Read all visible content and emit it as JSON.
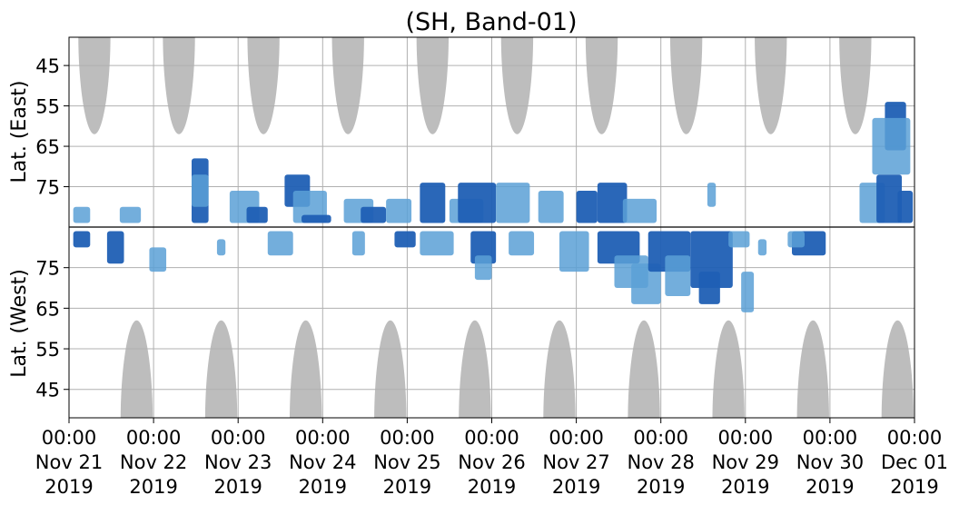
{
  "chart_data": {
    "type": "heatmap",
    "title": "(SH, Band-01)",
    "xlabel": "",
    "ylabel_top": "Lat. (East)",
    "ylabel_bottom": "Lat. (West)",
    "xlim": [
      "2019-11-21T00:00",
      "2019-12-01T00:00"
    ],
    "ylim_top": [
      85,
      38
    ],
    "ylim_bottom": [
      85,
      38
    ],
    "x_tick_labels": [
      {
        "time": "00:00",
        "date": "Nov 21",
        "year": "2019"
      },
      {
        "time": "00:00",
        "date": "Nov 22",
        "year": "2019"
      },
      {
        "time": "00:00",
        "date": "Nov 23",
        "year": "2019"
      },
      {
        "time": "00:00",
        "date": "Nov 24",
        "year": "2019"
      },
      {
        "time": "00:00",
        "date": "Nov 25",
        "year": "2019"
      },
      {
        "time": "00:00",
        "date": "Nov 26",
        "year": "2019"
      },
      {
        "time": "00:00",
        "date": "Nov 27",
        "year": "2019"
      },
      {
        "time": "00:00",
        "date": "Nov 28",
        "year": "2019"
      },
      {
        "time": "00:00",
        "date": "Nov 29",
        "year": "2019"
      },
      {
        "time": "00:00",
        "date": "Nov 30",
        "year": "2019"
      },
      {
        "time": "00:00",
        "date": "Dec 01",
        "year": "2019"
      }
    ],
    "y_ticks_top": [
      "45",
      "55",
      "65",
      "75"
    ],
    "y_ticks_bottom": [
      "75",
      "65",
      "55",
      "45"
    ],
    "y_tick_values_top": [
      45,
      55,
      65,
      75
    ],
    "y_tick_values_bottom": [
      75,
      65,
      55,
      45
    ],
    "grid": true,
    "colors": {
      "strong": "#1f5fb4",
      "weak": "#5aa0d6",
      "daylight": "#bdbdbd",
      "grid": "#b0b0b0"
    },
    "daylight_regions": {
      "east_center_days": [
        0.3,
        1.3,
        2.3,
        3.3,
        4.3,
        5.3,
        6.3,
        7.3,
        8.3,
        9.3
      ],
      "west_center_days": [
        0.8,
        1.8,
        2.8,
        3.8,
        4.8,
        5.8,
        6.8,
        7.8,
        8.8,
        9.8
      ],
      "half_width_days": 0.19,
      "min_lat": 62
    },
    "echo_patches": [
      {
        "start_day": 0.05,
        "end_day": 0.25,
        "hem": "east",
        "lat_min": 80,
        "lat_max": 84,
        "level": "weak"
      },
      {
        "start_day": 0.05,
        "end_day": 0.25,
        "hem": "west",
        "lat_min": 80,
        "lat_max": 84,
        "level": "strong"
      },
      {
        "start_day": 0.45,
        "end_day": 0.65,
        "hem": "west",
        "lat_min": 76,
        "lat_max": 84,
        "level": "strong"
      },
      {
        "start_day": 0.6,
        "end_day": 0.85,
        "hem": "east",
        "lat_min": 80,
        "lat_max": 84,
        "level": "weak"
      },
      {
        "start_day": 0.95,
        "end_day": 1.15,
        "hem": "west",
        "lat_min": 74,
        "lat_max": 80,
        "level": "weak"
      },
      {
        "start_day": 1.45,
        "end_day": 1.65,
        "hem": "east",
        "lat_min": 68,
        "lat_max": 84,
        "level": "strong"
      },
      {
        "start_day": 1.45,
        "end_day": 1.65,
        "hem": "east",
        "lat_min": 72,
        "lat_max": 80,
        "level": "weak"
      },
      {
        "start_day": 1.75,
        "end_day": 1.85,
        "hem": "west",
        "lat_min": 78,
        "lat_max": 82,
        "level": "weak"
      },
      {
        "start_day": 1.9,
        "end_day": 2.25,
        "hem": "east",
        "lat_min": 76,
        "lat_max": 84,
        "level": "weak"
      },
      {
        "start_day": 2.1,
        "end_day": 2.35,
        "hem": "east",
        "lat_min": 80,
        "lat_max": 84,
        "level": "strong"
      },
      {
        "start_day": 2.35,
        "end_day": 2.65,
        "hem": "west",
        "lat_min": 78,
        "lat_max": 84,
        "level": "weak"
      },
      {
        "start_day": 2.55,
        "end_day": 2.85,
        "hem": "east",
        "lat_min": 72,
        "lat_max": 80,
        "level": "strong"
      },
      {
        "start_day": 2.65,
        "end_day": 3.05,
        "hem": "east",
        "lat_min": 76,
        "lat_max": 84,
        "level": "weak"
      },
      {
        "start_day": 2.75,
        "end_day": 3.1,
        "hem": "east",
        "lat_min": 82,
        "lat_max": 84,
        "level": "strong"
      },
      {
        "start_day": 3.35,
        "end_day": 3.5,
        "hem": "west",
        "lat_min": 78,
        "lat_max": 84,
        "level": "weak"
      },
      {
        "start_day": 3.25,
        "end_day": 3.6,
        "hem": "east",
        "lat_min": 78,
        "lat_max": 84,
        "level": "weak"
      },
      {
        "start_day": 3.45,
        "end_day": 3.75,
        "hem": "east",
        "lat_min": 80,
        "lat_max": 84,
        "level": "strong"
      },
      {
        "start_day": 3.75,
        "end_day": 4.05,
        "hem": "east",
        "lat_min": 78,
        "lat_max": 84,
        "level": "weak"
      },
      {
        "start_day": 3.85,
        "end_day": 4.1,
        "hem": "west",
        "lat_min": 80,
        "lat_max": 84,
        "level": "strong"
      },
      {
        "start_day": 4.15,
        "end_day": 4.45,
        "hem": "east",
        "lat_min": 74,
        "lat_max": 84,
        "level": "strong"
      },
      {
        "start_day": 4.15,
        "end_day": 4.55,
        "hem": "west",
        "lat_min": 78,
        "lat_max": 84,
        "level": "weak"
      },
      {
        "start_day": 4.5,
        "end_day": 4.9,
        "hem": "east",
        "lat_min": 78,
        "lat_max": 84,
        "level": "weak"
      },
      {
        "start_day": 4.6,
        "end_day": 5.05,
        "hem": "east",
        "lat_min": 74,
        "lat_max": 84,
        "level": "strong"
      },
      {
        "start_day": 4.75,
        "end_day": 5.05,
        "hem": "west",
        "lat_min": 76,
        "lat_max": 84,
        "level": "strong"
      },
      {
        "start_day": 4.8,
        "end_day": 5.0,
        "hem": "west",
        "lat_min": 72,
        "lat_max": 78,
        "level": "weak"
      },
      {
        "start_day": 5.05,
        "end_day": 5.45,
        "hem": "east",
        "lat_min": 74,
        "lat_max": 84,
        "level": "weak"
      },
      {
        "start_day": 5.2,
        "end_day": 5.5,
        "hem": "west",
        "lat_min": 78,
        "lat_max": 84,
        "level": "weak"
      },
      {
        "start_day": 5.55,
        "end_day": 5.85,
        "hem": "east",
        "lat_min": 76,
        "lat_max": 84,
        "level": "weak"
      },
      {
        "start_day": 5.8,
        "end_day": 6.15,
        "hem": "west",
        "lat_min": 74,
        "lat_max": 84,
        "level": "weak"
      },
      {
        "start_day": 6.0,
        "end_day": 6.25,
        "hem": "east",
        "lat_min": 76,
        "lat_max": 84,
        "level": "strong"
      },
      {
        "start_day": 6.25,
        "end_day": 6.6,
        "hem": "east",
        "lat_min": 74,
        "lat_max": 84,
        "level": "strong"
      },
      {
        "start_day": 6.25,
        "end_day": 6.75,
        "hem": "west",
        "lat_min": 76,
        "lat_max": 84,
        "level": "strong"
      },
      {
        "start_day": 6.45,
        "end_day": 6.85,
        "hem": "west",
        "lat_min": 70,
        "lat_max": 78,
        "level": "weak"
      },
      {
        "start_day": 6.55,
        "end_day": 6.95,
        "hem": "east",
        "lat_min": 78,
        "lat_max": 84,
        "level": "weak"
      },
      {
        "start_day": 6.65,
        "end_day": 7.0,
        "hem": "west",
        "lat_min": 66,
        "lat_max": 76,
        "level": "weak"
      },
      {
        "start_day": 6.85,
        "end_day": 7.35,
        "hem": "west",
        "lat_min": 74,
        "lat_max": 84,
        "level": "strong"
      },
      {
        "start_day": 7.05,
        "end_day": 7.35,
        "hem": "west",
        "lat_min": 68,
        "lat_max": 78,
        "level": "weak"
      },
      {
        "start_day": 7.35,
        "end_day": 7.85,
        "hem": "west",
        "lat_min": 70,
        "lat_max": 84,
        "level": "strong"
      },
      {
        "start_day": 7.45,
        "end_day": 7.7,
        "hem": "west",
        "lat_min": 66,
        "lat_max": 74,
        "level": "strong"
      },
      {
        "start_day": 7.55,
        "end_day": 7.65,
        "hem": "east",
        "lat_min": 74,
        "lat_max": 80,
        "level": "weak"
      },
      {
        "start_day": 7.8,
        "end_day": 8.05,
        "hem": "west",
        "lat_min": 80,
        "lat_max": 84,
        "level": "weak"
      },
      {
        "start_day": 7.95,
        "end_day": 8.1,
        "hem": "west",
        "lat_min": 64,
        "lat_max": 74,
        "level": "weak"
      },
      {
        "start_day": 8.15,
        "end_day": 8.25,
        "hem": "west",
        "lat_min": 78,
        "lat_max": 82,
        "level": "weak"
      },
      {
        "start_day": 8.55,
        "end_day": 8.95,
        "hem": "west",
        "lat_min": 78,
        "lat_max": 84,
        "level": "strong"
      },
      {
        "start_day": 8.5,
        "end_day": 8.7,
        "hem": "west",
        "lat_min": 80,
        "lat_max": 84,
        "level": "weak"
      },
      {
        "start_day": 9.35,
        "end_day": 9.65,
        "hem": "east",
        "lat_min": 74,
        "lat_max": 84,
        "level": "weak"
      },
      {
        "start_day": 9.55,
        "end_day": 9.85,
        "hem": "east",
        "lat_min": 72,
        "lat_max": 84,
        "level": "strong"
      },
      {
        "start_day": 9.65,
        "end_day": 9.9,
        "hem": "east",
        "lat_min": 54,
        "lat_max": 66,
        "level": "strong"
      },
      {
        "start_day": 9.5,
        "end_day": 9.95,
        "hem": "east",
        "lat_min": 58,
        "lat_max": 72,
        "level": "weak"
      },
      {
        "start_day": 9.8,
        "end_day": 9.98,
        "hem": "east",
        "lat_min": 76,
        "lat_max": 84,
        "level": "strong"
      }
    ]
  }
}
